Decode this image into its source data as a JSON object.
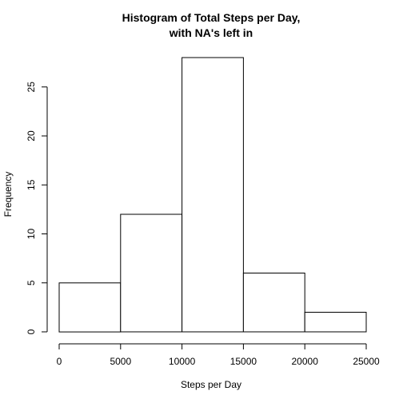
{
  "chart_data": {
    "type": "bar",
    "title_line1": "Histogram of Total Steps per Day,",
    "title_line2": "with NA's left in",
    "xlabel": "Steps per Day",
    "ylabel": "Frequency",
    "bins": [
      {
        "x0": 0,
        "x1": 5000,
        "count": 5
      },
      {
        "x0": 5000,
        "x1": 10000,
        "count": 12
      },
      {
        "x0": 10000,
        "x1": 15000,
        "count": 28
      },
      {
        "x0": 15000,
        "x1": 20000,
        "count": 6
      },
      {
        "x0": 20000,
        "x1": 25000,
        "count": 2
      }
    ],
    "xticks": [
      0,
      5000,
      10000,
      15000,
      20000,
      25000
    ],
    "yticks": [
      0,
      5,
      10,
      15,
      20,
      25
    ],
    "xlim": [
      0,
      25000
    ],
    "ylim": [
      0,
      28
    ],
    "grid": false
  }
}
